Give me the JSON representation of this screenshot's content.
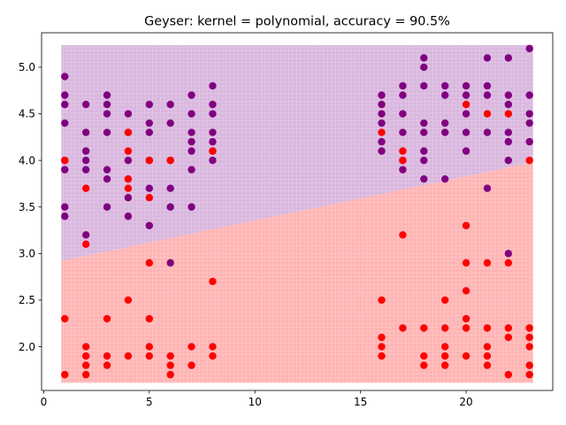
{
  "chart_data": {
    "type": "scatter",
    "title": "Geyser: kernel = polynomial, accuracy = 90.5%",
    "xlabel": "",
    "ylabel": "",
    "xlim": [
      -0.1,
      24.1
    ],
    "ylim": [
      1.53,
      5.37
    ],
    "xticks": [
      0,
      5,
      10,
      15,
      20
    ],
    "yticks": [
      2.0,
      2.5,
      3.0,
      3.5,
      4.0,
      4.5,
      5.0
    ],
    "grid": false,
    "legend": "none",
    "decision_regions": {
      "x_range": [
        1,
        23
      ],
      "y_range": [
        1.65,
        5.2
      ],
      "boundary_line": {
        "x": [
          1,
          23
        ],
        "y": [
          2.92,
          3.98
        ]
      },
      "upper_class_color": "#bf86c8",
      "lower_class_color": "#ff9a9a"
    },
    "series": [
      {
        "color": "#800080",
        "points": [
          [
            1,
            4.9
          ],
          [
            1,
            4.7
          ],
          [
            1,
            4.6
          ],
          [
            1,
            4.4
          ],
          [
            1,
            4.0
          ],
          [
            1,
            3.9
          ],
          [
            1,
            3.5
          ],
          [
            1,
            3.4
          ],
          [
            2,
            4.6
          ],
          [
            2,
            4.3
          ],
          [
            2,
            4.1
          ],
          [
            2,
            4.0
          ],
          [
            2,
            3.9
          ],
          [
            2,
            3.2
          ],
          [
            3,
            4.7
          ],
          [
            3,
            4.6
          ],
          [
            3,
            4.5
          ],
          [
            3,
            4.3
          ],
          [
            3,
            3.9
          ],
          [
            3,
            3.8
          ],
          [
            3,
            3.5
          ],
          [
            4,
            4.5
          ],
          [
            4,
            4.3
          ],
          [
            4,
            4.0
          ],
          [
            4,
            3.8
          ],
          [
            4,
            3.6
          ],
          [
            4,
            3.4
          ],
          [
            5,
            4.6
          ],
          [
            5,
            4.4
          ],
          [
            5,
            4.3
          ],
          [
            5,
            4.0
          ],
          [
            5,
            3.7
          ],
          [
            5,
            3.3
          ],
          [
            6,
            4.6
          ],
          [
            6,
            4.4
          ],
          [
            6,
            4.0
          ],
          [
            6,
            3.7
          ],
          [
            6,
            3.5
          ],
          [
            6,
            2.9
          ],
          [
            7,
            4.7
          ],
          [
            7,
            4.5
          ],
          [
            7,
            4.3
          ],
          [
            7,
            4.2
          ],
          [
            7,
            4.1
          ],
          [
            7,
            3.9
          ],
          [
            7,
            3.5
          ],
          [
            8,
            4.8
          ],
          [
            8,
            4.6
          ],
          [
            8,
            4.5
          ],
          [
            8,
            4.3
          ],
          [
            8,
            4.2
          ],
          [
            8,
            4.1
          ],
          [
            8,
            4.0
          ],
          [
            16,
            4.7
          ],
          [
            16,
            4.6
          ],
          [
            16,
            4.5
          ],
          [
            16,
            4.4
          ],
          [
            16,
            4.2
          ],
          [
            16,
            4.1
          ],
          [
            17,
            4.8
          ],
          [
            17,
            4.7
          ],
          [
            17,
            4.5
          ],
          [
            17,
            4.3
          ],
          [
            17,
            4.0
          ],
          [
            17,
            3.9
          ],
          [
            18,
            5.1
          ],
          [
            18,
            5.0
          ],
          [
            18,
            4.8
          ],
          [
            18,
            4.4
          ],
          [
            18,
            4.3
          ],
          [
            18,
            4.1
          ],
          [
            18,
            4.0
          ],
          [
            18,
            3.8
          ],
          [
            19,
            4.8
          ],
          [
            19,
            4.7
          ],
          [
            19,
            4.4
          ],
          [
            19,
            4.3
          ],
          [
            19,
            3.8
          ],
          [
            20,
            4.8
          ],
          [
            20,
            4.7
          ],
          [
            20,
            4.5
          ],
          [
            20,
            4.3
          ],
          [
            20,
            4.1
          ],
          [
            21,
            5.1
          ],
          [
            21,
            4.8
          ],
          [
            21,
            4.7
          ],
          [
            21,
            4.3
          ],
          [
            21,
            3.7
          ],
          [
            22,
            5.1
          ],
          [
            22,
            4.7
          ],
          [
            22,
            4.6
          ],
          [
            22,
            4.3
          ],
          [
            22,
            4.2
          ],
          [
            22,
            4.0
          ],
          [
            22,
            3.0
          ],
          [
            23,
            5.2
          ],
          [
            23,
            4.7
          ],
          [
            23,
            4.5
          ],
          [
            23,
            4.4
          ],
          [
            23,
            4.2
          ]
        ]
      },
      {
        "color": "#ff0000",
        "points": [
          [
            1,
            4.0
          ],
          [
            1,
            2.3
          ],
          [
            1,
            1.7
          ],
          [
            2,
            3.7
          ],
          [
            2,
            3.1
          ],
          [
            2,
            2.0
          ],
          [
            2,
            1.9
          ],
          [
            2,
            1.8
          ],
          [
            2,
            1.7
          ],
          [
            3,
            2.3
          ],
          [
            3,
            1.9
          ],
          [
            3,
            1.8
          ],
          [
            4,
            4.3
          ],
          [
            4,
            4.1
          ],
          [
            4,
            3.8
          ],
          [
            4,
            3.7
          ],
          [
            4,
            2.5
          ],
          [
            4,
            1.9
          ],
          [
            5,
            4.0
          ],
          [
            5,
            3.6
          ],
          [
            5,
            2.9
          ],
          [
            5,
            2.3
          ],
          [
            5,
            2.0
          ],
          [
            5,
            1.9
          ],
          [
            6,
            4.0
          ],
          [
            6,
            1.9
          ],
          [
            6,
            1.8
          ],
          [
            6,
            1.7
          ],
          [
            7,
            2.0
          ],
          [
            7,
            1.8
          ],
          [
            8,
            4.1
          ],
          [
            8,
            2.7
          ],
          [
            8,
            2.0
          ],
          [
            8,
            1.9
          ],
          [
            16,
            4.3
          ],
          [
            16,
            2.5
          ],
          [
            16,
            2.1
          ],
          [
            16,
            2.0
          ],
          [
            16,
            1.9
          ],
          [
            17,
            4.1
          ],
          [
            17,
            4.0
          ],
          [
            17,
            3.2
          ],
          [
            17,
            2.2
          ],
          [
            18,
            2.2
          ],
          [
            18,
            1.9
          ],
          [
            18,
            1.8
          ],
          [
            19,
            2.5
          ],
          [
            19,
            2.2
          ],
          [
            19,
            2.0
          ],
          [
            19,
            1.9
          ],
          [
            19,
            1.8
          ],
          [
            20,
            4.6
          ],
          [
            20,
            3.3
          ],
          [
            20,
            2.9
          ],
          [
            20,
            2.6
          ],
          [
            20,
            2.3
          ],
          [
            20,
            2.2
          ],
          [
            20,
            1.9
          ],
          [
            21,
            4.5
          ],
          [
            21,
            2.9
          ],
          [
            21,
            2.2
          ],
          [
            21,
            2.0
          ],
          [
            21,
            1.9
          ],
          [
            21,
            1.8
          ],
          [
            22,
            4.5
          ],
          [
            22,
            2.9
          ],
          [
            22,
            2.2
          ],
          [
            22,
            2.1
          ],
          [
            22,
            1.7
          ],
          [
            23,
            4.0
          ],
          [
            23,
            2.2
          ],
          [
            23,
            2.1
          ],
          [
            23,
            2.0
          ],
          [
            23,
            1.8
          ],
          [
            23,
            1.7
          ]
        ]
      }
    ]
  }
}
